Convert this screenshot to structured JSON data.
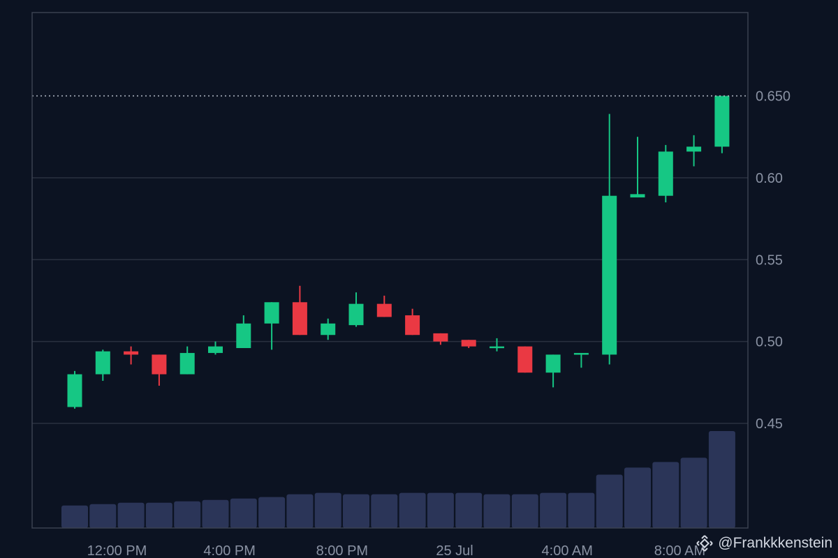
{
  "colors": {
    "background": "#0c1322",
    "frame": "#3a4150",
    "grid": "#2a3140",
    "up": "#16c784",
    "down": "#ea3943",
    "volume": "#2b3558",
    "axis_text": "#8a92a3",
    "price_line": "#b8bfcc"
  },
  "chart_data": {
    "type": "candlestick",
    "y_axis": {
      "position": "right",
      "ticks": [
        "0.45",
        "0.50",
        "0.55",
        "0.60",
        "0.650"
      ],
      "range": [
        0.4,
        0.7
      ]
    },
    "x_axis": {
      "ticks": [
        {
          "label": "12:00 PM",
          "index": 1.5
        },
        {
          "label": "4:00 PM",
          "index": 5.5
        },
        {
          "label": "8:00 PM",
          "index": 9.5
        },
        {
          "label": "25 Jul",
          "index": 13.5
        },
        {
          "label": "4:00 AM",
          "index": 17.5
        },
        {
          "label": "8:00 AM",
          "index": 21.5
        }
      ]
    },
    "current_price": 0.65,
    "candles": [
      {
        "o": 0.46,
        "h": 0.482,
        "l": 0.459,
        "c": 0.48
      },
      {
        "o": 0.48,
        "h": 0.495,
        "l": 0.476,
        "c": 0.494
      },
      {
        "o": 0.494,
        "h": 0.497,
        "l": 0.486,
        "c": 0.492
      },
      {
        "o": 0.492,
        "h": 0.492,
        "l": 0.473,
        "c": 0.48
      },
      {
        "o": 0.48,
        "h": 0.497,
        "l": 0.48,
        "c": 0.493
      },
      {
        "o": 0.493,
        "h": 0.5,
        "l": 0.492,
        "c": 0.497
      },
      {
        "o": 0.496,
        "h": 0.516,
        "l": 0.496,
        "c": 0.511
      },
      {
        "o": 0.511,
        "h": 0.524,
        "l": 0.495,
        "c": 0.524
      },
      {
        "o": 0.524,
        "h": 0.534,
        "l": 0.504,
        "c": 0.504
      },
      {
        "o": 0.504,
        "h": 0.514,
        "l": 0.501,
        "c": 0.511
      },
      {
        "o": 0.51,
        "h": 0.53,
        "l": 0.509,
        "c": 0.523
      },
      {
        "o": 0.523,
        "h": 0.528,
        "l": 0.515,
        "c": 0.515
      },
      {
        "o": 0.516,
        "h": 0.52,
        "l": 0.504,
        "c": 0.504
      },
      {
        "o": 0.505,
        "h": 0.505,
        "l": 0.498,
        "c": 0.5
      },
      {
        "o": 0.501,
        "h": 0.501,
        "l": 0.496,
        "c": 0.497
      },
      {
        "o": 0.497,
        "h": 0.502,
        "l": 0.494,
        "c": 0.497
      },
      {
        "o": 0.497,
        "h": 0.497,
        "l": 0.481,
        "c": 0.481
      },
      {
        "o": 0.481,
        "h": 0.492,
        "l": 0.472,
        "c": 0.492
      },
      {
        "o": 0.492,
        "h": 0.493,
        "l": 0.484,
        "c": 0.493
      },
      {
        "o": 0.492,
        "h": 0.639,
        "l": 0.486,
        "c": 0.589
      },
      {
        "o": 0.588,
        "h": 0.625,
        "l": 0.588,
        "c": 0.59
      },
      {
        "o": 0.589,
        "h": 0.62,
        "l": 0.585,
        "c": 0.616
      },
      {
        "o": 0.616,
        "h": 0.626,
        "l": 0.607,
        "c": 0.619
      },
      {
        "o": 0.619,
        "h": 0.65,
        "l": 0.615,
        "c": 0.65
      }
    ],
    "volume": [
      16,
      17,
      18,
      18,
      19,
      20,
      21,
      22,
      24,
      25,
      24,
      24,
      25,
      25,
      25,
      24,
      24,
      25,
      25,
      38,
      43,
      47,
      50,
      69
    ]
  },
  "watermark": {
    "text": "@Frankkkenstein",
    "logo_icon": "binance-icon"
  }
}
